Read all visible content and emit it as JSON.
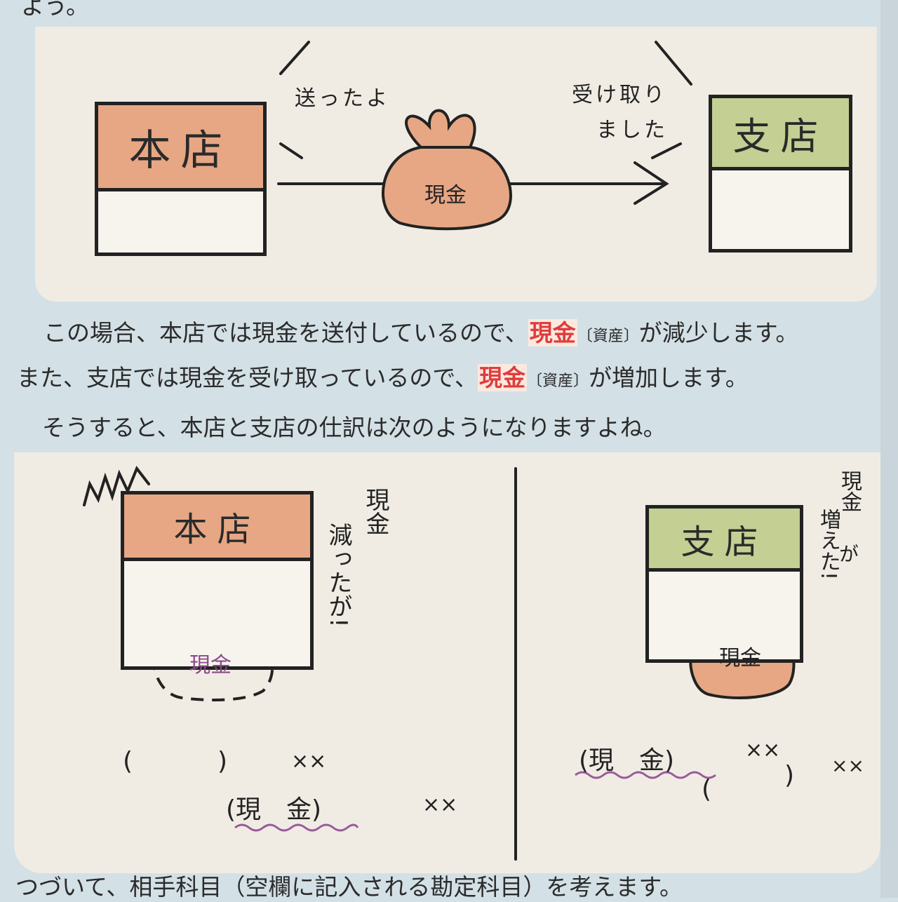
{
  "top_text": "よう。",
  "diagram1": {
    "head_office": "本店",
    "branch": "支店",
    "sent_speech": "送ったよ",
    "received_speech_1": "受け取り",
    "received_speech_2": "ました",
    "bag_label": "現金"
  },
  "paragraph": {
    "line1_a": "この場合、本店では現金を送付しているので、",
    "line1_term": "現金",
    "line1_tag": "〔資産〕",
    "line1_b": "が減少します。",
    "line2_a": "また、支店では現金を受け取っているので、",
    "line2_term": "現金",
    "line2_tag": "〔資産〕",
    "line2_b": "が増加します。",
    "line3": "そうすると、本店と支店の仕訳は次のようになりますよね。"
  },
  "diagram2": {
    "head_office": "本店",
    "head_bag": "現金",
    "head_caption_1": "現金",
    "head_caption_2": "減ったが!",
    "head_entry_debit_open": "(",
    "head_entry_debit_close": ")",
    "head_entry_debit_amount": "××",
    "head_entry_credit": "(現　金)",
    "head_entry_credit_amount": "××",
    "branch": "支店",
    "branch_bag": "現金",
    "branch_caption_1": "現金",
    "branch_caption_2": "増えた!",
    "branch_caption_mid": "が",
    "branch_entry_debit": "(現　金)",
    "branch_entry_debit_amount": "××",
    "branch_entry_credit_open": "(",
    "branch_entry_credit_close": ")",
    "branch_entry_credit_amount": "××"
  },
  "bottom_text": "つづいて、相手科目（空欄に記入される勘定科目）を考えます。",
  "colors": {
    "head_office": "#e7a784",
    "branch": "#c3cf93",
    "highlight": "#e03c3c",
    "wavy_underline": "#9a5a9a"
  }
}
